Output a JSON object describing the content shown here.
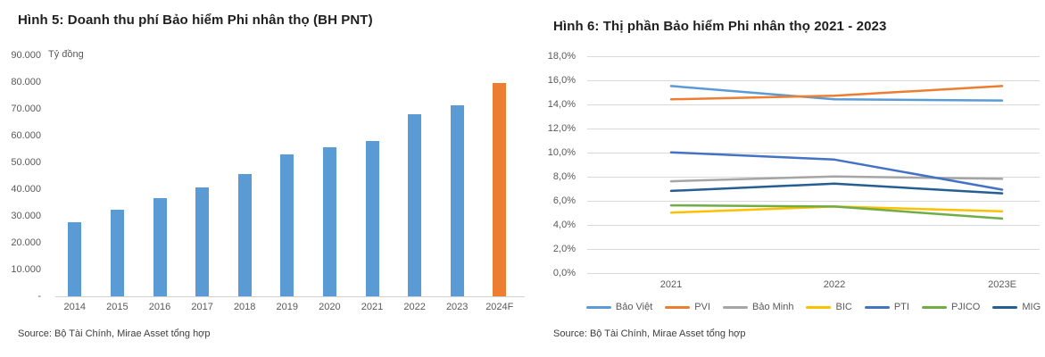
{
  "page": {
    "background": "#ffffff"
  },
  "chart_data": [
    {
      "type": "bar",
      "title": "Hình 5: Doanh thu phí Bảo hiểm Phi nhân thọ (BH PNT)",
      "unit_label": "Tỷ đồng",
      "source": "Source: Bộ Tài Chính, Mirae Asset tổng hợp",
      "categories": [
        "2014",
        "2015",
        "2016",
        "2017",
        "2018",
        "2019",
        "2020",
        "2021",
        "2022",
        "2023",
        "2024F"
      ],
      "values": [
        27700,
        32300,
        36600,
        40600,
        45700,
        53000,
        55700,
        58000,
        68000,
        71300,
        79800
      ],
      "ylim": [
        0,
        90000
      ],
      "ytick_step": 10000,
      "yticks": [
        {
          "value": 0,
          "label": "-"
        },
        {
          "value": 10000,
          "label": "10.000"
        },
        {
          "value": 20000,
          "label": "20.000"
        },
        {
          "value": 30000,
          "label": "30.000"
        },
        {
          "value": 40000,
          "label": "40.000"
        },
        {
          "value": 50000,
          "label": "50.000"
        },
        {
          "value": 60000,
          "label": "60.000"
        },
        {
          "value": 70000,
          "label": "70.000"
        },
        {
          "value": 80000,
          "label": "80.000"
        },
        {
          "value": 90000,
          "label": "90.000"
        }
      ],
      "colors": {
        "bar_default": "#5B9BD5",
        "bar_forecast": "#ED7D31"
      },
      "forecast_index": 10,
      "grid": false,
      "legend_position": "none"
    },
    {
      "type": "line",
      "title": "Hình 6: Thị phần Bảo hiểm Phi nhân thọ 2021 - 2023",
      "source": "Source: Bộ Tài Chính, Mirae Asset tổng hợp",
      "categories": [
        "2021",
        "2022",
        "2023E"
      ],
      "series": [
        {
          "name": "Bảo Việt",
          "color": "#5B9BD5",
          "values": [
            15.5,
            14.4,
            14.3
          ]
        },
        {
          "name": "PVI",
          "color": "#ED7D31",
          "values": [
            14.4,
            14.7,
            15.5
          ]
        },
        {
          "name": "Bảo Minh",
          "color": "#A5A5A5",
          "values": [
            7.6,
            8.0,
            7.8
          ]
        },
        {
          "name": "BIC",
          "color": "#FFC000",
          "values": [
            5.0,
            5.5,
            5.1
          ]
        },
        {
          "name": "PTI",
          "color": "#4472C4",
          "values": [
            10.0,
            9.4,
            6.9
          ]
        },
        {
          "name": "PJICO",
          "color": "#70AD47",
          "values": [
            5.6,
            5.5,
            4.5
          ]
        },
        {
          "name": "MIG",
          "color": "#255E91",
          "values": [
            6.8,
            7.4,
            6.6
          ]
        }
      ],
      "ylim": [
        0,
        18
      ],
      "ytick_step": 2,
      "yticks": [
        {
          "value": 0,
          "label": "0,0%"
        },
        {
          "value": 2,
          "label": "2,0%"
        },
        {
          "value": 4,
          "label": "4,0%"
        },
        {
          "value": 6,
          "label": "6,0%"
        },
        {
          "value": 8,
          "label": "8,0%"
        },
        {
          "value": 10,
          "label": "10,0%"
        },
        {
          "value": 12,
          "label": "12,0%"
        },
        {
          "value": 14,
          "label": "14,0%"
        },
        {
          "value": 16,
          "label": "16,0%"
        },
        {
          "value": 18,
          "label": "18,0%"
        }
      ],
      "grid": true,
      "legend_position": "bottom"
    }
  ]
}
